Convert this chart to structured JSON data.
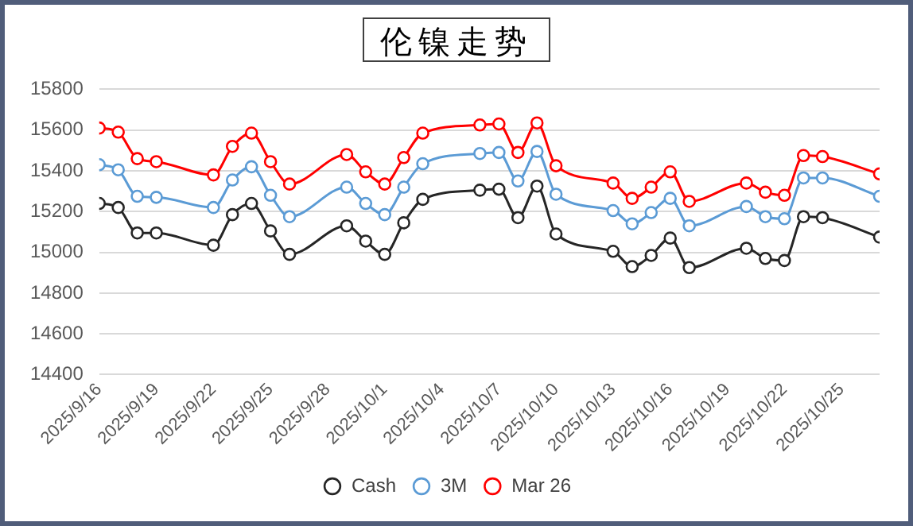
{
  "chart_data": {
    "type": "line",
    "title": "伦镍走势",
    "x": [
      "2025-09-16",
      "2025-09-17",
      "2025-09-18",
      "2025-09-19",
      "2025-09-22",
      "2025-09-23",
      "2025-09-24",
      "2025-09-25",
      "2025-09-26",
      "2025-09-29",
      "2025-09-30",
      "2025-10-01",
      "2025-10-02",
      "2025-10-03",
      "2025-10-06",
      "2025-10-07",
      "2025-10-08",
      "2025-10-09",
      "2025-10-10",
      "2025-10-13",
      "2025-10-14",
      "2025-10-15",
      "2025-10-16",
      "2025-10-17",
      "2025-10-20",
      "2025-10-21",
      "2025-10-22",
      "2025-10-23",
      "2025-10-24",
      "2025-10-27"
    ],
    "series": [
      {
        "name": "Cash",
        "color": "#262626",
        "values": [
          15240,
          15220,
          15095,
          15095,
          15035,
          15185,
          15240,
          15105,
          14990,
          15130,
          15055,
          14990,
          15145,
          15260,
          15305,
          15310,
          15170,
          15325,
          15090,
          15005,
          14930,
          14985,
          15070,
          14925,
          15020,
          14970,
          14960,
          15175,
          15170,
          15075
        ]
      },
      {
        "name": "3M",
        "color": "#5b9bd5",
        "values": [
          15430,
          15405,
          15275,
          15270,
          15220,
          15355,
          15420,
          15280,
          15175,
          15320,
          15240,
          15185,
          15320,
          15435,
          15485,
          15490,
          15350,
          15495,
          15285,
          15205,
          15140,
          15195,
          15265,
          15130,
          15225,
          15175,
          15165,
          15365,
          15365,
          15275
        ]
      },
      {
        "name": "Mar 26",
        "color": "#ff0000",
        "values": [
          15610,
          15590,
          15460,
          15445,
          15380,
          15520,
          15585,
          15445,
          15335,
          15480,
          15395,
          15335,
          15465,
          15585,
          15625,
          15630,
          15490,
          15635,
          15425,
          15340,
          15265,
          15320,
          15395,
          15250,
          15340,
          15295,
          15280,
          15475,
          15470,
          15385
        ]
      }
    ],
    "xlim": [
      "2025-09-16",
      "2025-10-27"
    ],
    "xticks": [
      {
        "value": "2025-09-16",
        "label": "2025/9/16"
      },
      {
        "value": "2025-09-19",
        "label": "2025/9/19"
      },
      {
        "value": "2025-09-22",
        "label": "2025/9/22"
      },
      {
        "value": "2025-09-25",
        "label": "2025/9/25"
      },
      {
        "value": "2025-09-28",
        "label": "2025/9/28"
      },
      {
        "value": "2025-10-01",
        "label": "2025/10/1"
      },
      {
        "value": "2025-10-04",
        "label": "2025/10/4"
      },
      {
        "value": "2025-10-07",
        "label": "2025/10/7"
      },
      {
        "value": "2025-10-10",
        "label": "2025/10/10"
      },
      {
        "value": "2025-10-13",
        "label": "2025/10/13"
      },
      {
        "value": "2025-10-16",
        "label": "2025/10/16"
      },
      {
        "value": "2025-10-19",
        "label": "2025/10/19"
      },
      {
        "value": "2025-10-22",
        "label": "2025/10/22"
      },
      {
        "value": "2025-10-25",
        "label": "2025/10/25"
      }
    ],
    "ylim": [
      14400,
      15800
    ],
    "yticks": [
      14400,
      14600,
      14800,
      15000,
      15200,
      15400,
      15600,
      15800
    ],
    "grid": "y",
    "legend": "bottom",
    "marker": "circle",
    "line_style": "solid"
  }
}
